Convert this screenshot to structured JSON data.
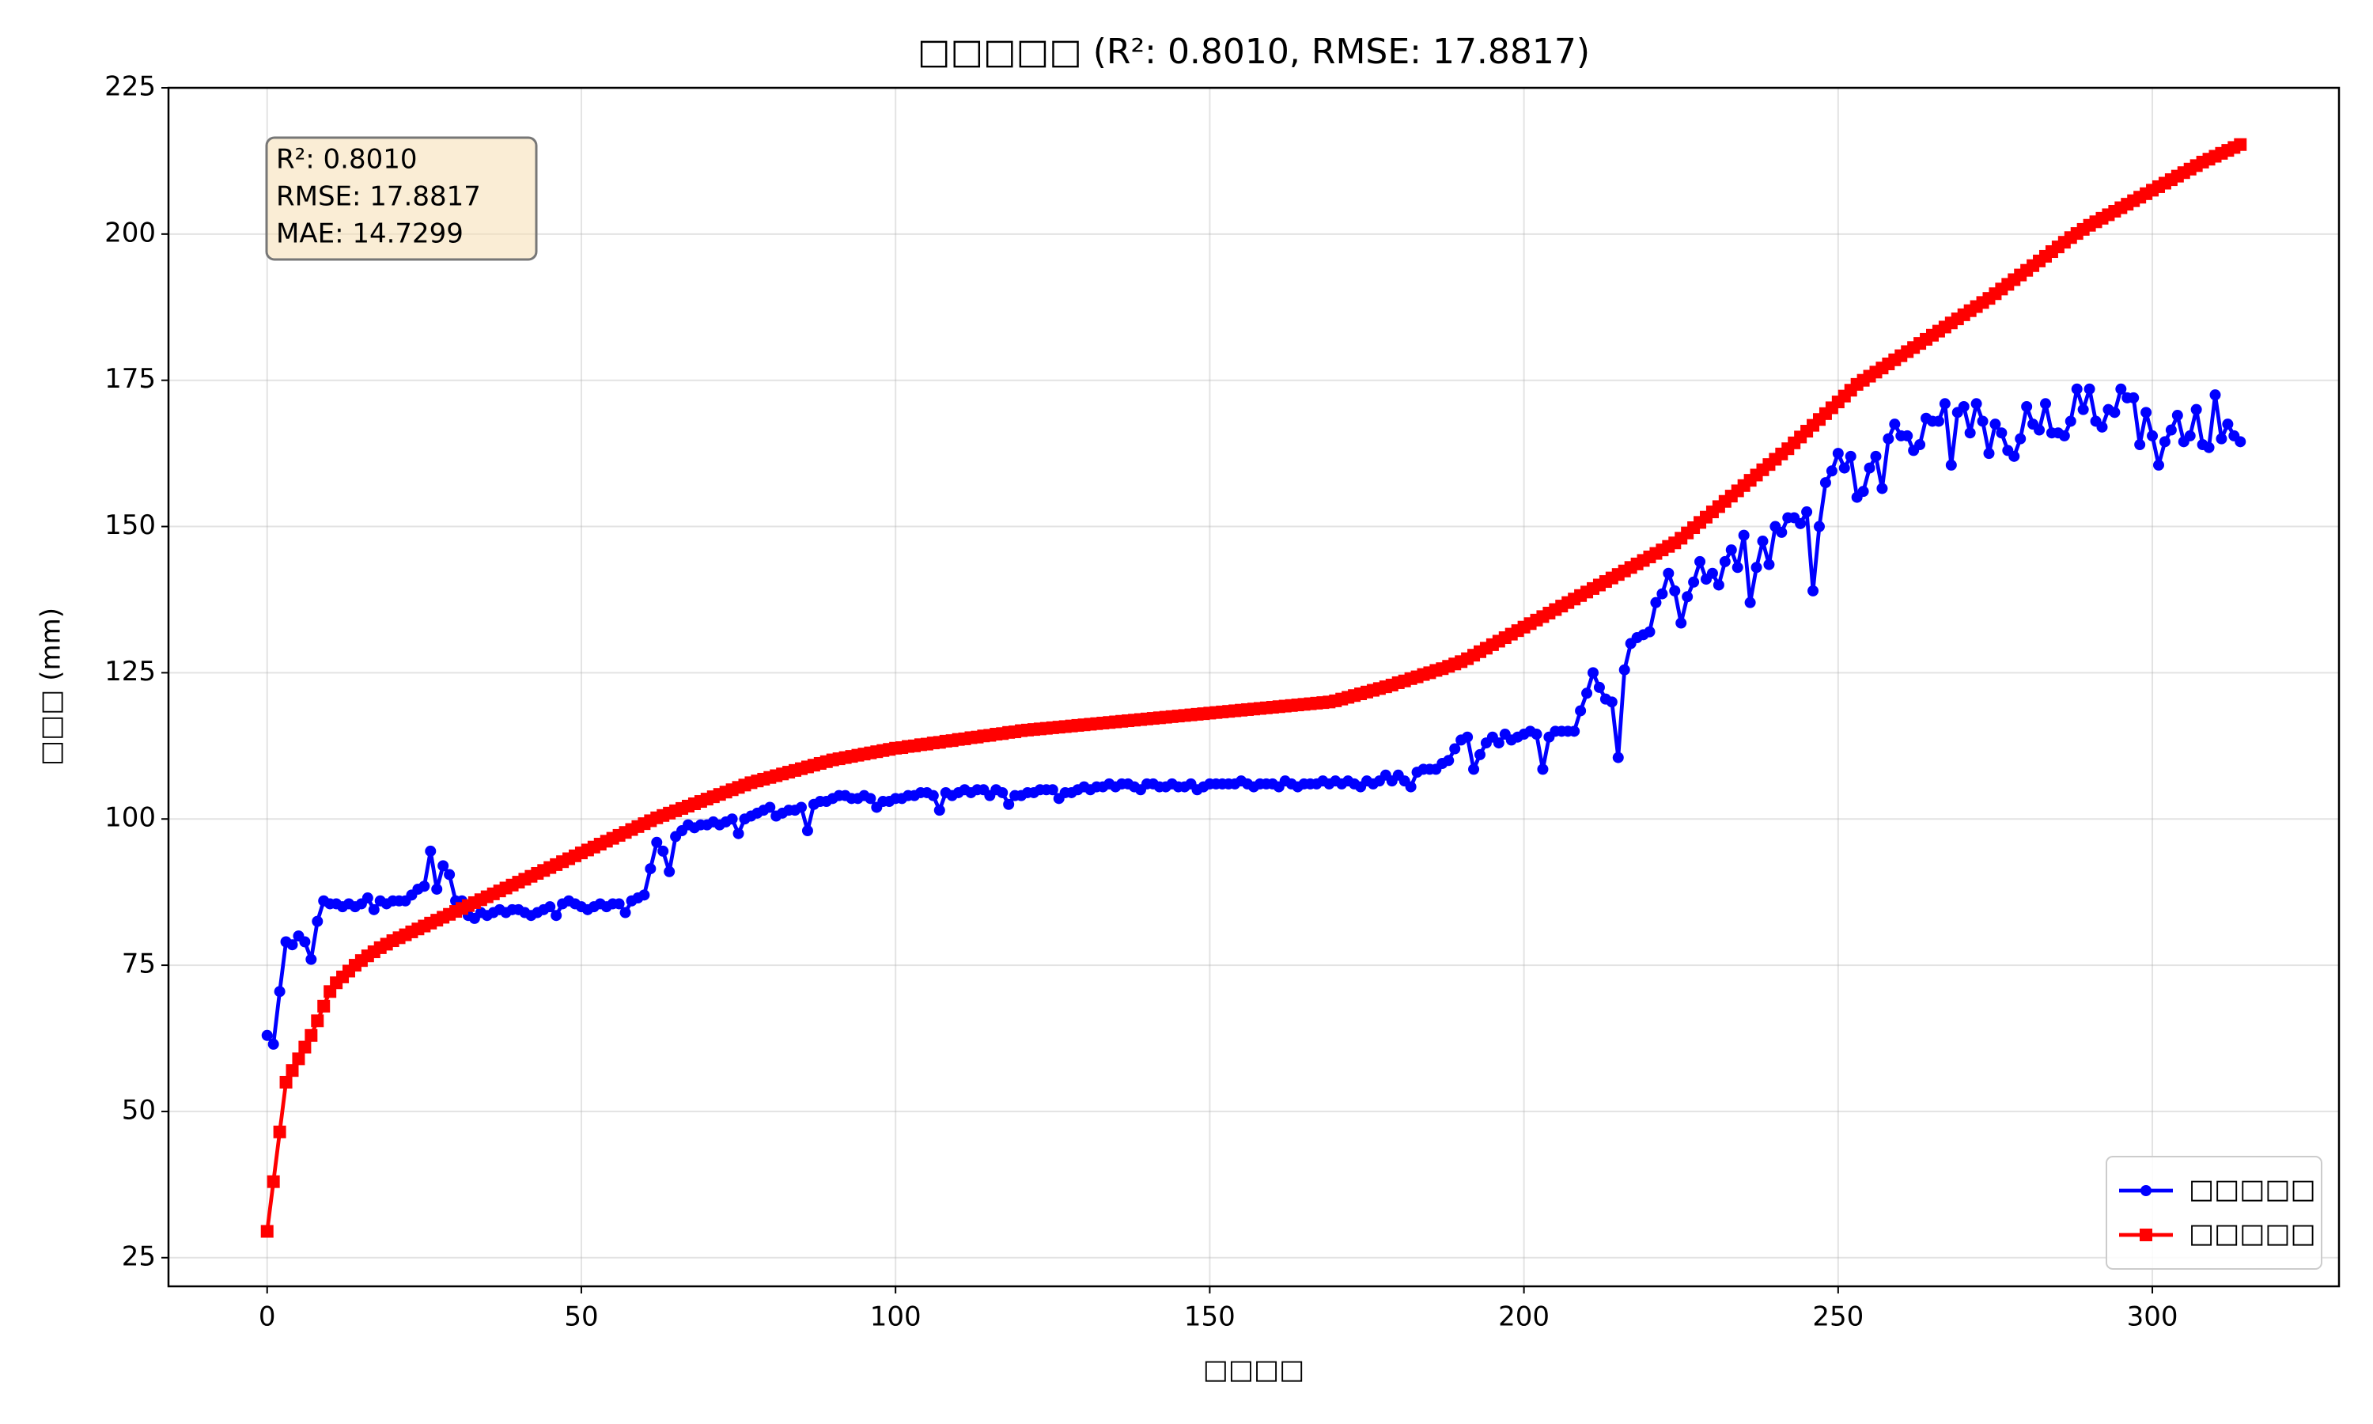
{
  "chart_data": {
    "type": "line",
    "title": "□□□□□ (R²: 0.8010, RMSE: 17.8817)",
    "xlabel": "□□□□",
    "ylabel": "□□□ (mm)",
    "annotation": [
      "R²: 0.8010",
      "RMSE: 17.8817",
      "MAE: 14.7299"
    ],
    "legend": "lower right",
    "grid": true,
    "xlim": [
      -15.7,
      329.7
    ],
    "ylim": [
      20.1,
      225
    ],
    "xticks": [
      0,
      50,
      100,
      150,
      200,
      250,
      300
    ],
    "yticks": [
      25,
      50,
      75,
      100,
      125,
      150,
      175,
      200,
      225
    ],
    "x": [
      0,
      1,
      2,
      3,
      4,
      5,
      6,
      7,
      8,
      9,
      10,
      11,
      12,
      13,
      14,
      15,
      16,
      17,
      18,
      19,
      20,
      21,
      22,
      23,
      24,
      25,
      26,
      27,
      28,
      29,
      30,
      31,
      32,
      33,
      34,
      35,
      36,
      37,
      38,
      39,
      40,
      41,
      42,
      43,
      44,
      45,
      46,
      47,
      48,
      49,
      50,
      51,
      52,
      53,
      54,
      55,
      56,
      57,
      58,
      59,
      60,
      61,
      62,
      63,
      64,
      65,
      66,
      67,
      68,
      69,
      70,
      71,
      72,
      73,
      74,
      75,
      76,
      77,
      78,
      79,
      80,
      81,
      82,
      83,
      84,
      85,
      86,
      87,
      88,
      89,
      90,
      91,
      92,
      93,
      94,
      95,
      96,
      97,
      98,
      99,
      100,
      101,
      102,
      103,
      104,
      105,
      106,
      107,
      108,
      109,
      110,
      111,
      112,
      113,
      114,
      115,
      116,
      117,
      118,
      119,
      120,
      121,
      122,
      123,
      124,
      125,
      126,
      127,
      128,
      129,
      130,
      131,
      132,
      133,
      134,
      135,
      136,
      137,
      138,
      139,
      140,
      141,
      142,
      143,
      144,
      145,
      146,
      147,
      148,
      149,
      150,
      151,
      152,
      153,
      154,
      155,
      156,
      157,
      158,
      159,
      160,
      161,
      162,
      163,
      164,
      165,
      166,
      167,
      168,
      169,
      170,
      171,
      172,
      173,
      174,
      175,
      176,
      177,
      178,
      179,
      180,
      181,
      182,
      183,
      184,
      185,
      186,
      187,
      188,
      189,
      190,
      191,
      192,
      193,
      194,
      195,
      196,
      197,
      198,
      199,
      200,
      201,
      202,
      203,
      204,
      205,
      206,
      207,
      208,
      209,
      210,
      211,
      212,
      213,
      214,
      215,
      216,
      217,
      218,
      219,
      220,
      221,
      222,
      223,
      224,
      225,
      226,
      227,
      228,
      229,
      230,
      231,
      232,
      233,
      234,
      235,
      236,
      237,
      238,
      239,
      240,
      241,
      242,
      243,
      244,
      245,
      246,
      247,
      248,
      249,
      250,
      251,
      252,
      253,
      254,
      255,
      256,
      257,
      258,
      259,
      260,
      261,
      262,
      263,
      264,
      265,
      266,
      267,
      268,
      269,
      270,
      271,
      272,
      273,
      274,
      275,
      276,
      277,
      278,
      279,
      280,
      281,
      282,
      283,
      284,
      285,
      286,
      287,
      288,
      289,
      290,
      291,
      292,
      293,
      294,
      295,
      296,
      297,
      298,
      299,
      300,
      301,
      302,
      303,
      304,
      305,
      306,
      307,
      308,
      309,
      310,
      311,
      312,
      313,
      314
    ],
    "series": [
      {
        "name": "□□□□□",
        "color": "#0000ff",
        "marker": "circle",
        "values": [
          63,
          61.5,
          70.5,
          79,
          78.5,
          80,
          79,
          76,
          82.5,
          86,
          85.5,
          85.5,
          85,
          85.5,
          85,
          85.5,
          86.5,
          84.5,
          86,
          85.5,
          86,
          86,
          86,
          87,
          88,
          88.5,
          94.5,
          88,
          92,
          90.5,
          86,
          86,
          83.5,
          83,
          84,
          83.5,
          84,
          84.5,
          84,
          84.5,
          84.5,
          84,
          83.5,
          84,
          84.5,
          85,
          83.5,
          85.5,
          86,
          85.5,
          85,
          84.5,
          85,
          85.5,
          85,
          85.5,
          85.5,
          84,
          86,
          86.5,
          87,
          91.5,
          96,
          94.5,
          91,
          97,
          98,
          99,
          98.5,
          99,
          99,
          99.5,
          99,
          99.5,
          100,
          97.5,
          100,
          100.5,
          101,
          101.5,
          102,
          100.5,
          101,
          101.5,
          101.5,
          102,
          98,
          102.5,
          103,
          103,
          103.5,
          104,
          104,
          103.5,
          103.5,
          104,
          103.5,
          102,
          103,
          103,
          103.5,
          103.5,
          104,
          104,
          104.5,
          104.5,
          104,
          101.5,
          104.5,
          104,
          104.5,
          105,
          104.5,
          105,
          105,
          104,
          105,
          104.5,
          102.5,
          104,
          104,
          104.5,
          104.5,
          105,
          105,
          105,
          103.5,
          104.5,
          104.5,
          105,
          105.5,
          105,
          105.5,
          105.5,
          106,
          105.5,
          106,
          106,
          105.5,
          105,
          106,
          106,
          105.5,
          105.5,
          106,
          105.5,
          105.5,
          106,
          105,
          105.5,
          106,
          106,
          106,
          106,
          106,
          106.5,
          106,
          105.5,
          106,
          106,
          106,
          105.5,
          106.5,
          106,
          105.5,
          106,
          106,
          106,
          106.5,
          106,
          106.5,
          106,
          106.5,
          106,
          105.5,
          106.5,
          106,
          106.5,
          107.5,
          106.5,
          107.5,
          106.5,
          105.5,
          108,
          108.5,
          108.5,
          108.5,
          109.5,
          110,
          112,
          113.5,
          114,
          108.5,
          111,
          113,
          114,
          113,
          114.5,
          113.5,
          114,
          114.5,
          115,
          114.5,
          108.5,
          114,
          115,
          115,
          115,
          115,
          118.5,
          121.5,
          125,
          122.5,
          120.5,
          120,
          110.5,
          125.5,
          130,
          131,
          131.5,
          132,
          137,
          138.5,
          142,
          139,
          133.5,
          138,
          140.5,
          144,
          141,
          142,
          140,
          144,
          146,
          143,
          148.5,
          137,
          143,
          147.5,
          143.5,
          150,
          149,
          151.5,
          151.5,
          150.5,
          152.5,
          139,
          150,
          157.5,
          159.5,
          162.5,
          160,
          162,
          155,
          156,
          160,
          162,
          156.5,
          165,
          167.5,
          165.5,
          165.5,
          163,
          164,
          168.5,
          168,
          168,
          171,
          160.5,
          169.5,
          170.5,
          166,
          171,
          168,
          162.5,
          167.5,
          166,
          163,
          162,
          165,
          170.5,
          167.5,
          166.5,
          171,
          166,
          166,
          165.5,
          168,
          173.5,
          170,
          173.5,
          168,
          167,
          170,
          169.5,
          173.5,
          172,
          172,
          164,
          169.5,
          165.5,
          160.5,
          164.5,
          166.5,
          169,
          164.5,
          165.5,
          170,
          164,
          163.5,
          172.5,
          165,
          167.5,
          165.5,
          164.5
        ]
      },
      {
        "name": "□□□□□",
        "color": "#ff0000",
        "marker": "square",
        "values": [
          29.5,
          38,
          46.5,
          55,
          57,
          59,
          61,
          63,
          65.5,
          68,
          70.5,
          72,
          73,
          74,
          75,
          75.8,
          76.6,
          77.3,
          78,
          78.6,
          79.2,
          79.7,
          80.2,
          80.7,
          81.2,
          81.7,
          82.2,
          82.7,
          83.2,
          83.7,
          84.2,
          84.7,
          85.2,
          85.7,
          86.2,
          86.7,
          87.2,
          87.7,
          88.2,
          88.7,
          89.2,
          89.7,
          90.2,
          90.7,
          91.2,
          91.7,
          92.2,
          92.7,
          93.2,
          93.7,
          94.2,
          94.7,
          95.2,
          95.7,
          96.2,
          96.7,
          97.2,
          97.7,
          98.2,
          98.7,
          99.2,
          99.7,
          100.2,
          100.6,
          101,
          101.4,
          101.8,
          102.2,
          102.6,
          103,
          103.4,
          103.8,
          104.2,
          104.6,
          105,
          105.4,
          105.8,
          106.2,
          106.5,
          106.8,
          107.1,
          107.4,
          107.7,
          108,
          108.3,
          108.6,
          108.9,
          109.2,
          109.5,
          109.8,
          110.1,
          110.3,
          110.5,
          110.7,
          110.9,
          111.1,
          111.3,
          111.5,
          111.7,
          111.9,
          112.1,
          112.2,
          112.4,
          112.5,
          112.7,
          112.8,
          113,
          113.1,
          113.3,
          113.4,
          113.6,
          113.7,
          113.9,
          114,
          114.2,
          114.3,
          114.5,
          114.6,
          114.8,
          114.9,
          115.1,
          115.2,
          115.3,
          115.4,
          115.5,
          115.6,
          115.7,
          115.8,
          115.9,
          116,
          116.1,
          116.2,
          116.3,
          116.4,
          116.5,
          116.6,
          116.7,
          116.8,
          116.9,
          117,
          117.1,
          117.2,
          117.3,
          117.4,
          117.5,
          117.6,
          117.7,
          117.8,
          117.9,
          118,
          118.1,
          118.2,
          118.3,
          118.4,
          118.5,
          118.6,
          118.7,
          118.8,
          118.9,
          119,
          119.1,
          119.2,
          119.3,
          119.4,
          119.5,
          119.6,
          119.7,
          119.8,
          119.9,
          120,
          120.2,
          120.5,
          120.8,
          121.1,
          121.4,
          121.7,
          122,
          122.3,
          122.6,
          122.9,
          123.3,
          123.6,
          124,
          124.3,
          124.7,
          125,
          125.4,
          125.7,
          126.1,
          126.5,
          126.9,
          127.4,
          128,
          128.6,
          129.2,
          129.8,
          130.4,
          131,
          131.6,
          132.2,
          132.8,
          133.4,
          134,
          134.6,
          135.2,
          135.8,
          136.4,
          137,
          137.6,
          138.2,
          138.8,
          139.4,
          140,
          140.6,
          141.2,
          141.8,
          142.4,
          143,
          143.6,
          144.2,
          144.8,
          145.4,
          146,
          146.6,
          147.2,
          148,
          148.9,
          149.8,
          150.7,
          151.6,
          152.5,
          153.4,
          154.3,
          155.2,
          156.1,
          157,
          157.9,
          158.8,
          159.7,
          160.6,
          161.5,
          162.4,
          163.3,
          164.3,
          165.3,
          166.3,
          167.3,
          168.3,
          169.3,
          170.3,
          171.3,
          172.3,
          173.3,
          174.3,
          175,
          175.7,
          176.4,
          177.1,
          177.8,
          178.5,
          179.2,
          179.9,
          180.6,
          181.3,
          182,
          182.7,
          183.4,
          184.1,
          184.8,
          185.5,
          186.2,
          186.9,
          187.6,
          188.3,
          189,
          189.8,
          190.6,
          191.4,
          192.2,
          193,
          193.8,
          194.6,
          195.4,
          196.2,
          197,
          197.8,
          198.6,
          199.4,
          200.1,
          200.8,
          201.5,
          202.1,
          202.7,
          203.3,
          203.9,
          204.5,
          205.1,
          205.7,
          206.3,
          206.9,
          207.5,
          208.1,
          208.7,
          209.3,
          209.9,
          210.5,
          211.1,
          211.7,
          212.3,
          212.8,
          213.3,
          213.8,
          214.3,
          214.8,
          215.3
        ]
      }
    ]
  }
}
